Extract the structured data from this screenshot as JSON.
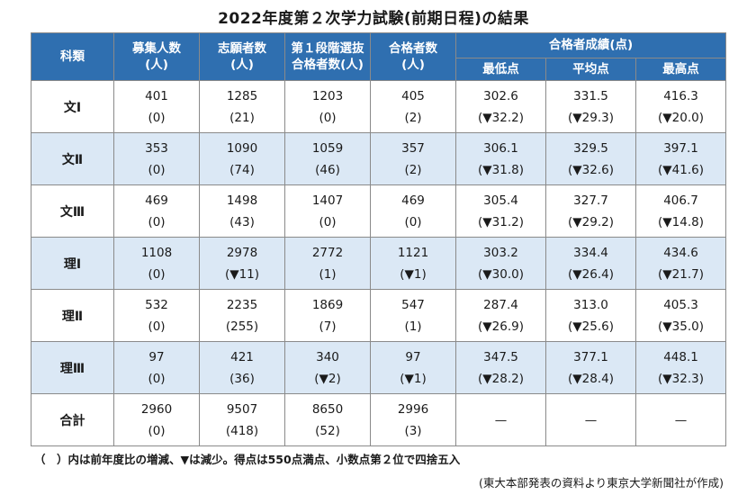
{
  "title": "2022年度第２次学力試験(前期日程)の結果",
  "headers": {
    "subject": "科類",
    "quota": [
      "募集人数",
      "(人)"
    ],
    "applicants": [
      "志願者数",
      "(人)"
    ],
    "first_stage": [
      "第１段階選抜",
      "合格者数(人)"
    ],
    "passers": [
      "合格者数",
      "(人)"
    ],
    "scores_group": "合格者成績(点)",
    "min": "最低点",
    "avg": "平均点",
    "max": "最高点"
  },
  "rows": [
    {
      "subject": "文Ⅰ",
      "quota": "401",
      "quota_c": "(0)",
      "applicants": "1285",
      "applicants_c": "(21)",
      "first": "1203",
      "first_c": "(0)",
      "passers": "405",
      "passers_c": "(2)",
      "min": "302.6",
      "min_c": "(▼32.2)",
      "avg": "331.5",
      "avg_c": "(▼29.3)",
      "max": "416.3",
      "max_c": "(▼20.0)"
    },
    {
      "subject": "文Ⅱ",
      "quota": "353",
      "quota_c": "(0)",
      "applicants": "1090",
      "applicants_c": "(74)",
      "first": "1059",
      "first_c": "(46)",
      "passers": "357",
      "passers_c": "(2)",
      "min": "306.1",
      "min_c": "(▼31.8)",
      "avg": "329.5",
      "avg_c": "(▼32.6)",
      "max": "397.1",
      "max_c": "(▼41.6)"
    },
    {
      "subject": "文Ⅲ",
      "quota": "469",
      "quota_c": "(0)",
      "applicants": "1498",
      "applicants_c": "(43)",
      "first": "1407",
      "first_c": "(0)",
      "passers": "469",
      "passers_c": "(0)",
      "min": "305.4",
      "min_c": "(▼31.2)",
      "avg": "327.7",
      "avg_c": "(▼29.2)",
      "max": "406.7",
      "max_c": "(▼14.8)"
    },
    {
      "subject": "理Ⅰ",
      "quota": "1108",
      "quota_c": "(0)",
      "applicants": "2978",
      "applicants_c": "(▼11)",
      "first": "2772",
      "first_c": "(1)",
      "passers": "1121",
      "passers_c": "(▼1)",
      "min": "303.2",
      "min_c": "(▼30.0)",
      "avg": "334.4",
      "avg_c": "(▼26.4)",
      "max": "434.6",
      "max_c": "(▼21.7)"
    },
    {
      "subject": "理Ⅱ",
      "quota": "532",
      "quota_c": "(0)",
      "applicants": "2235",
      "applicants_c": "(255)",
      "first": "1869",
      "first_c": "(7)",
      "passers": "547",
      "passers_c": "(1)",
      "min": "287.4",
      "min_c": "(▼26.9)",
      "avg": "313.0",
      "avg_c": "(▼25.6)",
      "max": "405.3",
      "max_c": "(▼35.0)"
    },
    {
      "subject": "理Ⅲ",
      "quota": "97",
      "quota_c": "(0)",
      "applicants": "421",
      "applicants_c": "(36)",
      "first": "340",
      "first_c": "(▼2)",
      "passers": "97",
      "passers_c": "(▼1)",
      "min": "347.5",
      "min_c": "(▼28.2)",
      "avg": "377.1",
      "avg_c": "(▼28.4)",
      "max": "448.1",
      "max_c": "(▼32.3)"
    },
    {
      "subject": "合計",
      "quota": "2960",
      "quota_c": "(0)",
      "applicants": "9507",
      "applicants_c": "(418)",
      "first": "8650",
      "first_c": "(52)",
      "passers": "2996",
      "passers_c": "(3)",
      "min": "—",
      "avg": "—",
      "max": "—"
    }
  ],
  "note": "（　）内は前年度比の増減、▼は減少。得点は550点満点、小数点第２位で四捨五入",
  "source": "(東大本部発表の資料より東京大学新聞社が作成)"
}
